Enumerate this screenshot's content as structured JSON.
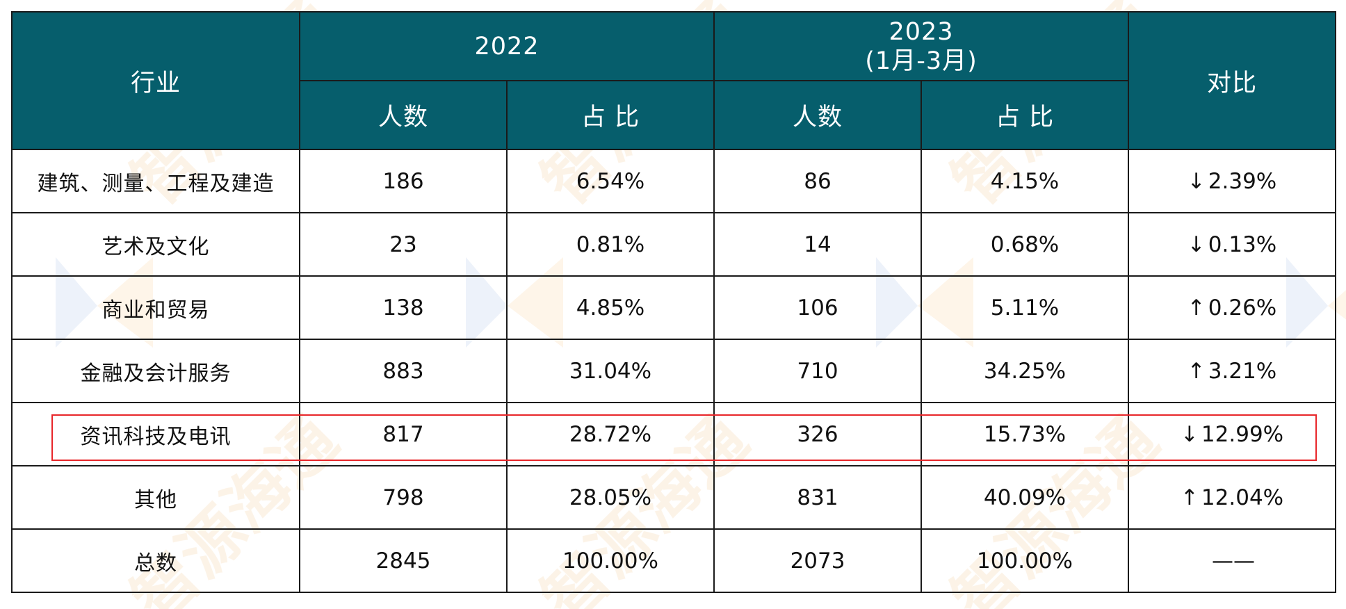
{
  "header": {
    "industry": "行业",
    "year_a": "2022",
    "year_b": "2023",
    "year_b_sub": "(1月-3月)",
    "compare": "对比",
    "count": "人数",
    "ratio": "占 比"
  },
  "rows": [
    {
      "industry": "建筑、测量、工程及建造",
      "a_count": "186",
      "a_ratio": "6.54%",
      "b_count": "86",
      "b_ratio": "4.15%",
      "dir": "↓",
      "change": "2.39%"
    },
    {
      "industry": "艺术及文化",
      "a_count": "23",
      "a_ratio": "0.81%",
      "b_count": "14",
      "b_ratio": "0.68%",
      "dir": "↓",
      "change": "0.13%"
    },
    {
      "industry": "商业和贸易",
      "a_count": "138",
      "a_ratio": "4.85%",
      "b_count": "106",
      "b_ratio": "5.11%",
      "dir": "↑",
      "change": "0.26%"
    },
    {
      "industry": "金融及会计服务",
      "a_count": "883",
      "a_ratio": "31.04%",
      "b_count": "710",
      "b_ratio": "34.25%",
      "dir": "↑",
      "change": "3.21%"
    },
    {
      "industry": "资讯科技及电讯",
      "a_count": "817",
      "a_ratio": "28.72%",
      "b_count": "326",
      "b_ratio": "15.73%",
      "dir": "↓",
      "change": "12.99%"
    },
    {
      "industry": "其他",
      "a_count": "798",
      "a_ratio": "28.05%",
      "b_count": "831",
      "b_ratio": "40.09%",
      "dir": "↑",
      "change": "12.04%"
    },
    {
      "industry": "总数",
      "a_count": "2845",
      "a_ratio": "100.00%",
      "b_count": "2073",
      "b_ratio": "100.00%",
      "dir": "",
      "change": "——"
    }
  ],
  "colors": {
    "header_bg": "#065e6c",
    "header_text": "#ffffff",
    "highlight": "#e8262a",
    "watermark": "#f3c98a"
  },
  "watermark": "智源海通"
}
